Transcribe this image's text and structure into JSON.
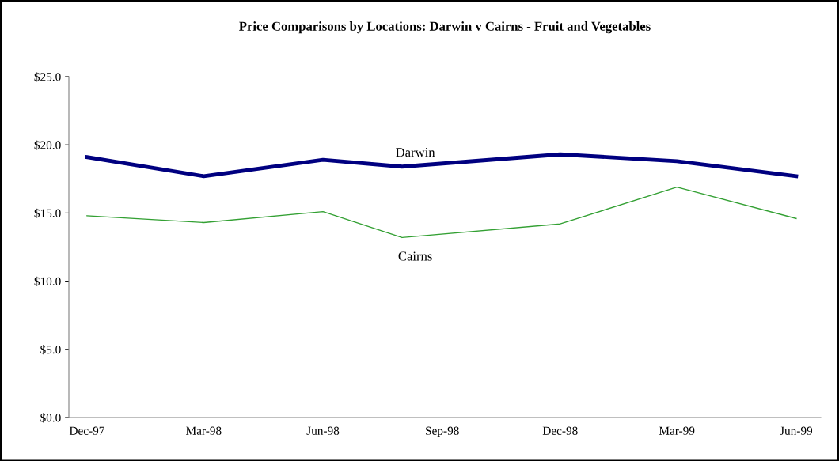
{
  "chart_data": {
    "type": "line",
    "title": "Price Comparisons by Locations: Darwin v Cairns - Fruit and Vegetables",
    "x": [
      "1997-12",
      "1998-03",
      "1998-06",
      "1998-08",
      "1998-12",
      "1999-03",
      "1999-06"
    ],
    "series": [
      {
        "name": "Darwin",
        "color": "#000080",
        "values": [
          19.1,
          17.7,
          18.9,
          18.4,
          19.3,
          18.8,
          17.7
        ]
      },
      {
        "name": "Cairns",
        "color": "#33a033",
        "values": [
          14.8,
          14.3,
          15.1,
          13.2,
          14.2,
          16.9,
          14.6
        ]
      }
    ],
    "xlim": [
      "1997-11-17",
      "1999-06-20"
    ],
    "xticks": [
      {
        "value": "1997-12",
        "label": "Dec-97"
      },
      {
        "value": "1998-03",
        "label": "Mar-98"
      },
      {
        "value": "1998-06",
        "label": "Jun-98"
      },
      {
        "value": "1998-09",
        "label": "Sep-98"
      },
      {
        "value": "1998-12",
        "label": "Dec-98"
      },
      {
        "value": "1999-03",
        "label": "Mar-99"
      },
      {
        "value": "1999-06",
        "label": "Jun-99"
      }
    ],
    "ylim": [
      0,
      25
    ],
    "yticks": [
      {
        "value": 0,
        "label": "$0.0"
      },
      {
        "value": 5,
        "label": "$5.0"
      },
      {
        "value": 10,
        "label": "$10.0"
      },
      {
        "value": 15,
        "label": "$15.0"
      },
      {
        "value": 20,
        "label": "$20.0"
      },
      {
        "value": 25,
        "label": "$25.0"
      }
    ],
    "grid": false,
    "legend": false
  }
}
